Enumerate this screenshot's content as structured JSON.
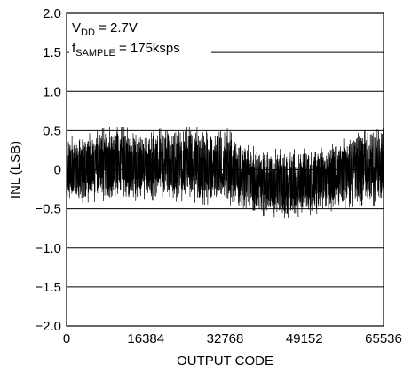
{
  "chart_data": {
    "type": "line",
    "xlabel": "OUTPUT CODE",
    "ylabel": "INL (LSB)",
    "xlim": [
      0,
      65536
    ],
    "ylim": [
      -2.0,
      2.0
    ],
    "x_ticks": [
      "0",
      "16384",
      "32768",
      "49152",
      "65536"
    ],
    "y_ticks": [
      "2.0",
      "1.5",
      "1.0",
      "0.5",
      "0",
      "−0.5",
      "−1.0",
      "−1.5",
      "−2.0"
    ],
    "grid": true,
    "annotations": {
      "vdd": {
        "main": "V",
        "sub": "DD",
        "rest": " = 2.7V"
      },
      "fsample": {
        "main": "f",
        "sub": "SAMPLE",
        "rest": " = 175ksps"
      }
    },
    "series_envelope": {
      "x": [
        0,
        4096,
        8192,
        12288,
        16384,
        20480,
        24576,
        28672,
        32768,
        36864,
        40960,
        45056,
        49152,
        53248,
        57344,
        61440,
        65536
      ],
      "y_max": [
        0.42,
        0.45,
        0.55,
        0.55,
        0.45,
        0.55,
        0.55,
        0.55,
        0.55,
        0.32,
        0.28,
        0.26,
        0.27,
        0.28,
        0.4,
        0.5,
        0.6
      ],
      "y_min": [
        -0.45,
        -0.42,
        -0.4,
        -0.42,
        -0.38,
        -0.42,
        -0.4,
        -0.45,
        -0.42,
        -0.55,
        -0.6,
        -0.62,
        -0.6,
        -0.55,
        -0.5,
        -0.45,
        -0.48
      ]
    },
    "colors": {
      "trace": "#000000",
      "grid": "#000000"
    }
  }
}
